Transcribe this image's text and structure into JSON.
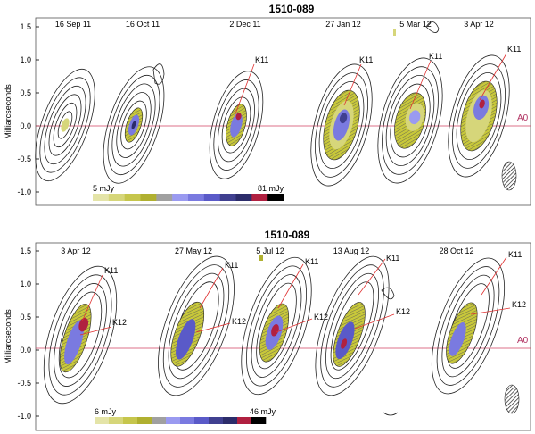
{
  "panels": [
    {
      "title": "1510-089",
      "ylabel": "Milliarcseconds",
      "ref_label": "A0",
      "y_ticks": [
        "1.5",
        "1.0",
        "0.5",
        "0.0",
        "-0.5",
        "-1.0"
      ],
      "epochs": [
        "16 Sep 11",
        "16 Oct 11",
        "2 Dec 11",
        "27 Jan 12",
        "5 Mar 12",
        "3 Apr 12"
      ],
      "knot_labels": [
        "K11",
        "K11",
        "K11",
        "K11"
      ],
      "colorbar": {
        "min_label": "5 mJy",
        "max_label": "81 mJy"
      }
    },
    {
      "title": "1510-089",
      "ylabel": "Milliarcseconds",
      "ref_label": "A0",
      "y_ticks": [
        "1.5",
        "1.0",
        "0.5",
        "0.0",
        "-0.5",
        "-1.0"
      ],
      "epochs": [
        "3 Apr 12",
        "27 May 12",
        "5 Jul 12",
        "13 Aug 12",
        "28 Oct 12"
      ],
      "knot_labels_k11": [
        "K11",
        "K11",
        "K11",
        "K11",
        "K11"
      ],
      "knot_labels_k12": [
        "K12",
        "K12",
        "K12",
        "K12",
        "K12"
      ],
      "colorbar": {
        "min_label": "6 mJy",
        "max_label": "46 mJy"
      }
    }
  ],
  "colors": {
    "colorbar": [
      "#e4e4a8",
      "#d6d67a",
      "#c6c64c",
      "#b0b030",
      "#a0a0a0",
      "#9a9af0",
      "#7a7ae0",
      "#5a5ac8",
      "#404090",
      "#2c2c6a",
      "#b02040",
      "#000000"
    ],
    "ref_line": "#d04060",
    "knot_line": "#e03030"
  }
}
